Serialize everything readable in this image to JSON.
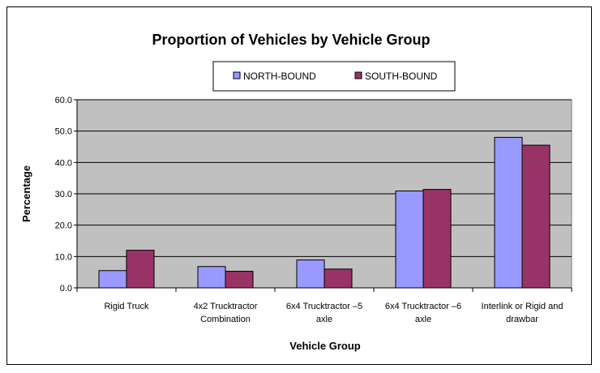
{
  "chart_data": {
    "type": "bar",
    "title": "Proportion of Vehicles by Vehicle Group",
    "xlabel": "Vehicle Group",
    "ylabel": "Percentage",
    "categories": [
      [
        "Rigid Truck"
      ],
      [
        "4x2 Trucktractor",
        "Combination"
      ],
      [
        "6x4 Trucktractor –5",
        "axle"
      ],
      [
        "6x4 Trucktractor –6",
        "axle"
      ],
      [
        "Interlink or Rigid and",
        "drawbar"
      ]
    ],
    "series": [
      {
        "name": "NORTH-BOUND",
        "color": "#9999ff",
        "values": [
          5.5,
          6.8,
          8.9,
          30.9,
          48.0
        ]
      },
      {
        "name": "SOUTH-BOUND",
        "color": "#993366",
        "values": [
          12.0,
          5.3,
          6.0,
          31.4,
          45.5
        ]
      }
    ],
    "ylim": [
      0,
      60
    ],
    "yticks": [
      0,
      10,
      20,
      30,
      40,
      50,
      60
    ],
    "ytick_labels": [
      "0.0",
      "10.0",
      "20.0",
      "30.0",
      "40.0",
      "50.0",
      "60.0"
    ],
    "grid": true,
    "plot_background": "#c0c0c0",
    "legend_position": "top-center"
  }
}
